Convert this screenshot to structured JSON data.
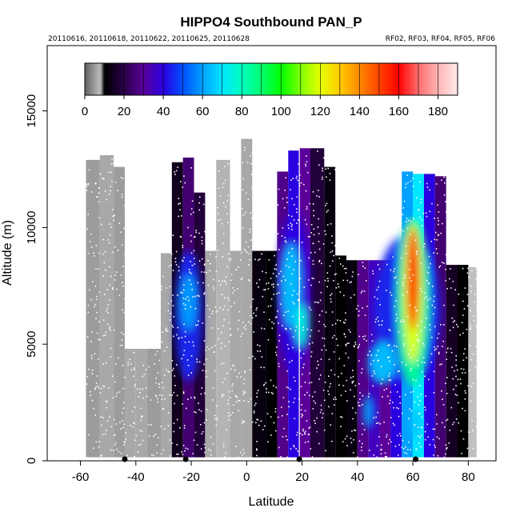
{
  "chart_data": {
    "type": "heatmap",
    "title": "HIPPO4 Southbound PAN_P",
    "dates_text": "20110616, 20110618, 20110622, 20110625, 20110628",
    "flights_text": "RF02, RF03, RF04, RF05, RF06",
    "xlabel": "Latitude",
    "ylabel": "Altitude (m)",
    "xlim": [
      -72,
      90
    ],
    "ylim": [
      0,
      17800
    ],
    "x_ticks": [
      -60,
      -40,
      -20,
      0,
      20,
      40,
      60,
      80
    ],
    "y_ticks": [
      0,
      5000,
      10000,
      15000
    ],
    "colorbar": {
      "range": [
        0,
        190
      ],
      "ticks": [
        0,
        20,
        40,
        60,
        80,
        100,
        120,
        140,
        160,
        180
      ],
      "stops": [
        {
          "v": 0,
          "c": "#606060"
        },
        {
          "v": 8,
          "c": "#c0c0c0"
        },
        {
          "v": 10,
          "c": "#000000"
        },
        {
          "v": 20,
          "c": "#2a0048"
        },
        {
          "v": 30,
          "c": "#5a0099"
        },
        {
          "v": 40,
          "c": "#2a00e0"
        },
        {
          "v": 50,
          "c": "#0050ff"
        },
        {
          "v": 60,
          "c": "#00a0ff"
        },
        {
          "v": 70,
          "c": "#00e6ff"
        },
        {
          "v": 80,
          "c": "#00ffc0"
        },
        {
          "v": 90,
          "c": "#00ff70"
        },
        {
          "v": 100,
          "c": "#00ff00"
        },
        {
          "v": 110,
          "c": "#80ff00"
        },
        {
          "v": 120,
          "c": "#e6ff00"
        },
        {
          "v": 130,
          "c": "#ffcc00"
        },
        {
          "v": 140,
          "c": "#ff8800"
        },
        {
          "v": 150,
          "c": "#ff4400"
        },
        {
          "v": 160,
          "c": "#ff0000"
        },
        {
          "v": 170,
          "c": "#ff6e6e"
        },
        {
          "v": 180,
          "c": "#ffb4b4"
        },
        {
          "v": 190,
          "c": "#ffecec"
        }
      ]
    },
    "columns": [
      {
        "x0": -58,
        "x1": -53,
        "top": 12900,
        "bottom": 150,
        "v": 5
      },
      {
        "x0": -53,
        "x1": -48,
        "top": 13100,
        "bottom": 150,
        "v": 6
      },
      {
        "x0": -48,
        "x1": -44,
        "top": 12600,
        "bottom": 150,
        "v": 5
      },
      {
        "x0": -44,
        "x1": -40,
        "top": 4800,
        "bottom": 150,
        "v": 6
      },
      {
        "x0": -40,
        "x1": -36,
        "top": 4800,
        "bottom": 150,
        "v": 6
      },
      {
        "x0": -36,
        "x1": -31,
        "top": 4800,
        "bottom": 150,
        "v": 5
      },
      {
        "x0": -31,
        "x1": -27,
        "top": 8900,
        "bottom": 150,
        "v": 6
      },
      {
        "x0": -27,
        "x1": -23,
        "top": 12800,
        "bottom": 150,
        "v": 14
      },
      {
        "x0": -23,
        "x1": -19,
        "top": 13000,
        "bottom": 150,
        "v": 25
      },
      {
        "x0": -19,
        "x1": -15,
        "top": 11500,
        "bottom": 150,
        "v": 18
      },
      {
        "x0": -15,
        "x1": -11,
        "top": 9000,
        "bottom": 150,
        "v": 6
      },
      {
        "x0": -11,
        "x1": -6,
        "top": 12900,
        "bottom": 150,
        "v": 7
      },
      {
        "x0": -6,
        "x1": -2,
        "top": 9000,
        "bottom": 150,
        "v": 6
      },
      {
        "x0": -2,
        "x1": 2,
        "top": 13800,
        "bottom": 150,
        "v": 6
      },
      {
        "x0": 2,
        "x1": 7,
        "top": 9000,
        "bottom": 150,
        "v": 12
      },
      {
        "x0": 7,
        "x1": 11,
        "top": 9000,
        "bottom": 150,
        "v": 10
      },
      {
        "x0": 11,
        "x1": 15,
        "top": 12400,
        "bottom": 150,
        "v": 28
      },
      {
        "x0": 15,
        "x1": 19,
        "top": 13300,
        "bottom": 150,
        "v": 40
      },
      {
        "x0": 19,
        "x1": 23,
        "top": 13400,
        "bottom": 150,
        "v": 30
      },
      {
        "x0": 23,
        "x1": 28,
        "top": 13400,
        "bottom": 150,
        "v": 18
      },
      {
        "x0": 28,
        "x1": 32,
        "top": 12600,
        "bottom": 150,
        "v": 12
      },
      {
        "x0": 32,
        "x1": 36,
        "top": 8800,
        "bottom": 150,
        "v": 10
      },
      {
        "x0": 36,
        "x1": 40,
        "top": 8600,
        "bottom": 150,
        "v": 12
      },
      {
        "x0": 40,
        "x1": 44,
        "top": 8600,
        "bottom": 150,
        "v": 28
      },
      {
        "x0": 44,
        "x1": 48,
        "top": 8600,
        "bottom": 150,
        "v": 35
      },
      {
        "x0": 48,
        "x1": 52,
        "top": 8600,
        "bottom": 150,
        "v": 30
      },
      {
        "x0": 52,
        "x1": 56,
        "top": 8800,
        "bottom": 150,
        "v": 40
      },
      {
        "x0": 56,
        "x1": 60,
        "top": 12400,
        "bottom": 150,
        "v": 60
      },
      {
        "x0": 60,
        "x1": 64,
        "top": 12300,
        "bottom": 150,
        "v": 70
      },
      {
        "x0": 64,
        "x1": 68,
        "top": 12300,
        "bottom": 150,
        "v": 40
      },
      {
        "x0": 68,
        "x1": 72,
        "top": 12200,
        "bottom": 150,
        "v": 25
      },
      {
        "x0": 72,
        "x1": 76,
        "top": 8400,
        "bottom": 150,
        "v": 15
      },
      {
        "x0": 76,
        "x1": 80,
        "top": 8400,
        "bottom": 150,
        "v": 10
      },
      {
        "x0": 80,
        "x1": 83,
        "top": 8300,
        "bottom": 150,
        "v": 8
      }
    ],
    "plumes": [
      {
        "x": -21,
        "y": 6200,
        "rx": 5,
        "ry": 2800,
        "v": 45
      },
      {
        "x": -21,
        "y": 6800,
        "rx": 3,
        "ry": 1200,
        "v": 60
      },
      {
        "x": 17,
        "y": 7200,
        "rx": 6,
        "ry": 3500,
        "v": 40
      },
      {
        "x": 16,
        "y": 7500,
        "rx": 3.5,
        "ry": 1800,
        "v": 65
      },
      {
        "x": 20,
        "y": 5800,
        "rx": 2.5,
        "ry": 900,
        "v": 75
      },
      {
        "x": 58,
        "y": 6500,
        "rx": 12,
        "ry": 3200,
        "v": 45
      },
      {
        "x": 60,
        "y": 6800,
        "rx": 6,
        "ry": 3600,
        "v": 85
      },
      {
        "x": 60,
        "y": 7200,
        "rx": 3.5,
        "ry": 3000,
        "v": 120
      },
      {
        "x": 60,
        "y": 7800,
        "rx": 2.2,
        "ry": 2200,
        "v": 155
      },
      {
        "x": 49,
        "y": 4200,
        "rx": 5,
        "ry": 900,
        "v": 65
      },
      {
        "x": 44,
        "y": 2100,
        "rx": 2,
        "ry": 700,
        "v": 60
      },
      {
        "x": 61,
        "y": 1600,
        "rx": 2,
        "ry": 700,
        "v": 65
      }
    ],
    "profile_lines_x": [
      19
    ],
    "bottom_markers_x": [
      -44,
      -22,
      19,
      61
    ]
  }
}
